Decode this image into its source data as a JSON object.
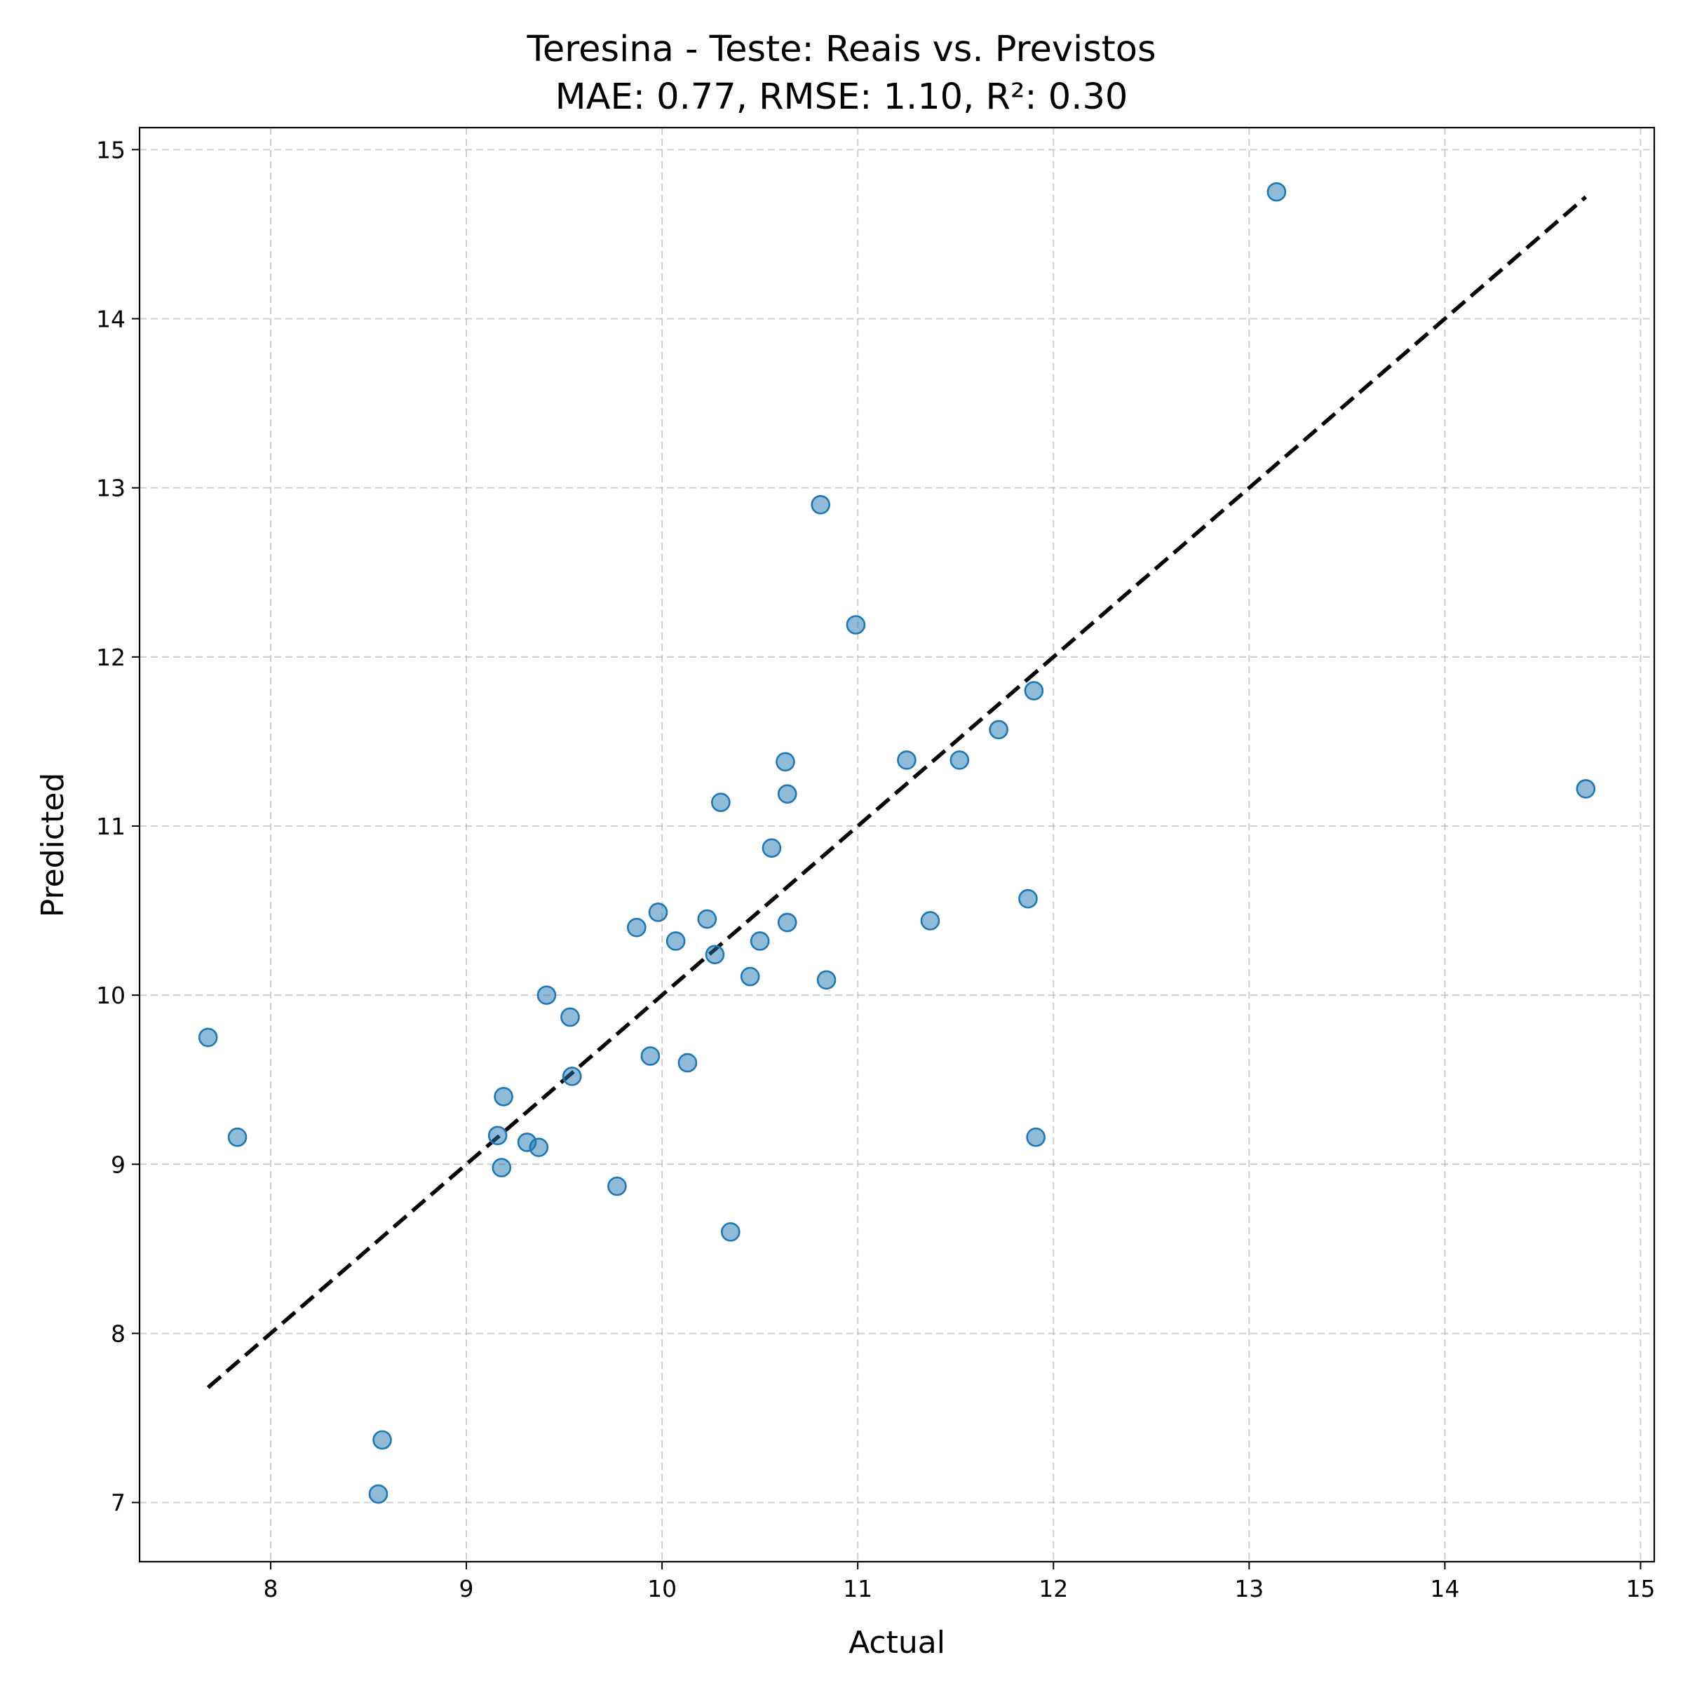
{
  "chart_data": {
    "type": "scatter",
    "title": "Teresina - Teste: Reais vs. Previstos",
    "subtitle": "MAE: 0.77, RMSE: 1.10, R²: 0.30",
    "xlabel": "Actual",
    "ylabel": "Predicted",
    "xlim": [
      7.33,
      15.07
    ],
    "ylim": [
      6.65,
      15.13
    ],
    "xticks": [
      "8",
      "9",
      "10",
      "11",
      "12",
      "13",
      "14",
      "15"
    ],
    "yticks": [
      "7",
      "8",
      "9",
      "10",
      "11",
      "12",
      "13",
      "14",
      "15"
    ],
    "grid": true,
    "point_color": "#1f77b4",
    "reference_line": {
      "from": [
        7.68,
        7.68
      ],
      "to": [
        14.72,
        14.72
      ],
      "color": "#000000",
      "style": "dashed"
    },
    "points": [
      {
        "x": 7.68,
        "y": 9.75
      },
      {
        "x": 7.83,
        "y": 9.16
      },
      {
        "x": 8.55,
        "y": 7.05
      },
      {
        "x": 8.57,
        "y": 7.37
      },
      {
        "x": 9.16,
        "y": 9.17
      },
      {
        "x": 9.18,
        "y": 8.98
      },
      {
        "x": 9.19,
        "y": 9.4
      },
      {
        "x": 9.31,
        "y": 9.13
      },
      {
        "x": 9.37,
        "y": 9.1
      },
      {
        "x": 9.41,
        "y": 10.0
      },
      {
        "x": 9.53,
        "y": 9.87
      },
      {
        "x": 9.54,
        "y": 9.52
      },
      {
        "x": 9.77,
        "y": 8.87
      },
      {
        "x": 9.87,
        "y": 10.4
      },
      {
        "x": 9.94,
        "y": 9.64
      },
      {
        "x": 9.98,
        "y": 10.49
      },
      {
        "x": 10.07,
        "y": 10.32
      },
      {
        "x": 10.13,
        "y": 9.6
      },
      {
        "x": 10.23,
        "y": 10.45
      },
      {
        "x": 10.27,
        "y": 10.24
      },
      {
        "x": 10.3,
        "y": 11.14
      },
      {
        "x": 10.35,
        "y": 8.6
      },
      {
        "x": 10.45,
        "y": 10.11
      },
      {
        "x": 10.5,
        "y": 10.32
      },
      {
        "x": 10.56,
        "y": 10.87
      },
      {
        "x": 10.63,
        "y": 11.38
      },
      {
        "x": 10.64,
        "y": 11.19
      },
      {
        "x": 10.64,
        "y": 10.43
      },
      {
        "x": 10.81,
        "y": 12.9
      },
      {
        "x": 10.84,
        "y": 10.09
      },
      {
        "x": 10.99,
        "y": 12.19
      },
      {
        "x": 11.25,
        "y": 11.39
      },
      {
        "x": 11.37,
        "y": 10.44
      },
      {
        "x": 11.52,
        "y": 11.39
      },
      {
        "x": 11.72,
        "y": 11.57
      },
      {
        "x": 11.87,
        "y": 10.57
      },
      {
        "x": 11.9,
        "y": 11.8
      },
      {
        "x": 11.91,
        "y": 9.16
      },
      {
        "x": 13.14,
        "y": 14.75
      },
      {
        "x": 14.72,
        "y": 11.22
      }
    ]
  }
}
